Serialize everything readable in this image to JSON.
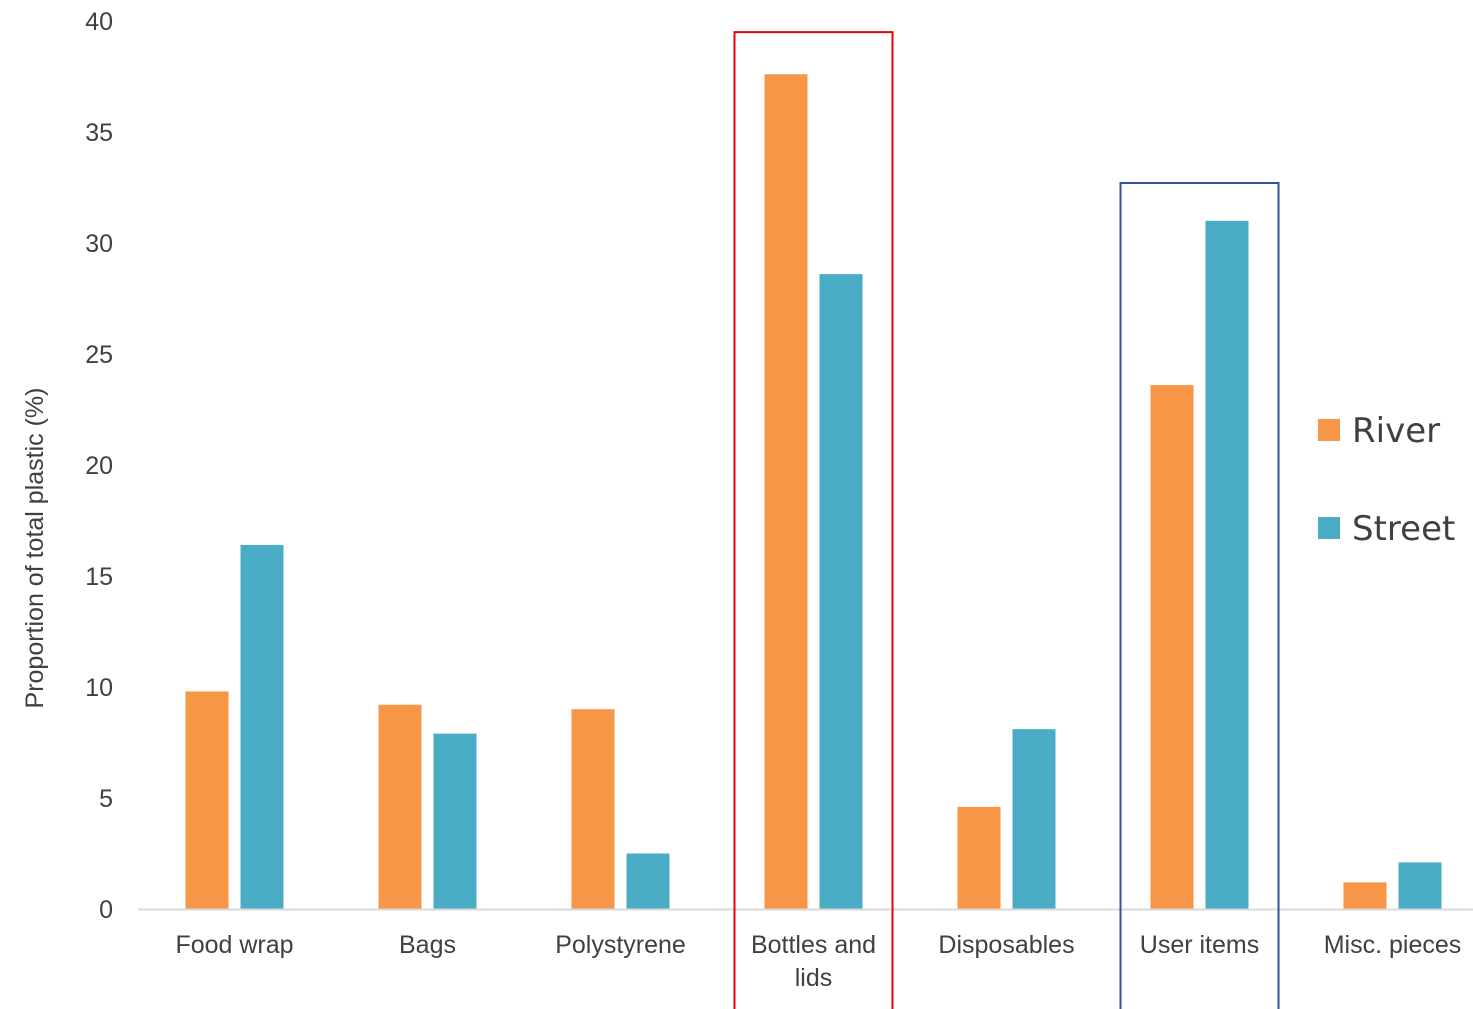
{
  "chart_data": {
    "type": "bar",
    "title": "",
    "xlabel": "",
    "ylabel": "Proportion of total plastic (%)",
    "ylim": [
      0,
      40
    ],
    "yticks": [
      0,
      5,
      10,
      15,
      20,
      25,
      30,
      35,
      40
    ],
    "grid": false,
    "legend_position": "right",
    "categories": [
      [
        "Food wrap"
      ],
      [
        "Bags"
      ],
      [
        "Polystyrene"
      ],
      [
        "Bottles and",
        "lids"
      ],
      [
        "Disposables"
      ],
      [
        "User items"
      ],
      [
        "Misc. pieces"
      ]
    ],
    "series": [
      {
        "name": "River",
        "color": "#F79646",
        "values": [
          9.8,
          9.2,
          9.0,
          37.6,
          4.6,
          23.6,
          1.2
        ]
      },
      {
        "name": "Street",
        "color": "#4BACC6",
        "values": [
          16.4,
          7.9,
          2.5,
          28.6,
          8.1,
          31.0,
          2.1
        ]
      }
    ],
    "highlight_boxes": [
      {
        "category_index": 3,
        "color": "#E8000B",
        "top_value": 39.5
      },
      {
        "category_index": 5,
        "color": "#2F5597",
        "top_value": 32.7
      }
    ],
    "axis_color": "#D9D9D9",
    "text_color": "#404040"
  }
}
